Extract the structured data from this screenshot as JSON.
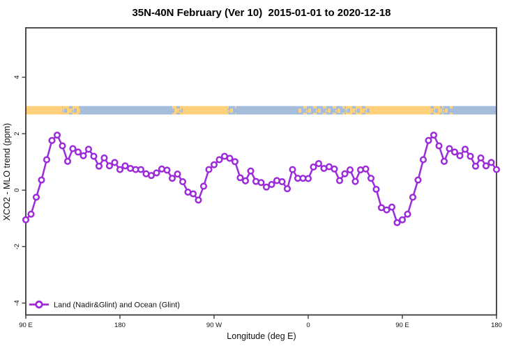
{
  "title": "35N-40N February (Ver 10)  2015-01-01 to 2020-12-18",
  "axes": {
    "x": {
      "label": "Longitude (deg E)",
      "ticks": [
        {
          "lon": 90,
          "label": "90 E"
        },
        {
          "lon": 180,
          "label": "180"
        },
        {
          "lon": 270,
          "label": "90 W"
        },
        {
          "lon": 360,
          "label": "0"
        },
        {
          "lon": 450,
          "label": "90 E"
        },
        {
          "lon": 540,
          "label": "180"
        }
      ]
    },
    "y": {
      "label": "XCO2 - MLO trend (ppm)",
      "ticks": [
        -4,
        -2,
        0,
        2,
        4
      ]
    }
  },
  "legend": {
    "label": "Land (Nadir&Glint) and Ocean (Glint)"
  },
  "colors": {
    "series": "#9C2BD9",
    "land": "#FDD17C",
    "ocean": "#A6BCDB",
    "axis": "#3a3a3a",
    "text": "#111111"
  },
  "surface_band": {
    "y_range_ppm": [
      2.68,
      2.98
    ],
    "segments": [
      {
        "lon1": 90,
        "lon2": 125,
        "type": "land"
      },
      {
        "lon1": 125,
        "lon2": 142,
        "type": "mix_land"
      },
      {
        "lon1": 142,
        "lon2": 230,
        "type": "ocean"
      },
      {
        "lon1": 230,
        "lon2": 240,
        "type": "mix_land"
      },
      {
        "lon1": 240,
        "lon2": 283,
        "type": "land"
      },
      {
        "lon1": 283,
        "lon2": 291,
        "type": "mix_ocean"
      },
      {
        "lon1": 291,
        "lon2": 350,
        "type": "ocean"
      },
      {
        "lon1": 350,
        "lon2": 395,
        "type": "mix_ocean"
      },
      {
        "lon1": 395,
        "lon2": 420,
        "type": "mix_land"
      },
      {
        "lon1": 420,
        "lon2": 477,
        "type": "land"
      },
      {
        "lon1": 477,
        "lon2": 488,
        "type": "mix_land"
      },
      {
        "lon1": 488,
        "lon2": 498,
        "type": "mix_ocean"
      },
      {
        "lon1": 498,
        "lon2": 540,
        "type": "ocean"
      }
    ]
  },
  "chart_data": {
    "type": "line",
    "title": "35N-40N February (Ver 10)  2015-01-01 to 2020-12-18",
    "xlabel": "Longitude (deg E)",
    "ylabel": "XCO2 - MLO trend (ppm)",
    "marker": "open-circle",
    "legend_position": "bottom-left",
    "grid": false,
    "xlim": [
      90,
      540
    ],
    "ylim": [
      -4.42,
      5.75
    ],
    "x": [
      90,
      95,
      100,
      105,
      110,
      115,
      120,
      125,
      130,
      135,
      140,
      145,
      150,
      155,
      160,
      165,
      170,
      175,
      180,
      185,
      190,
      195,
      200,
      205,
      210,
      215,
      220,
      225,
      230,
      235,
      240,
      245,
      250,
      255,
      260,
      265,
      270,
      275,
      280,
      285,
      290,
      295,
      300,
      305,
      310,
      315,
      320,
      325,
      330,
      335,
      340,
      345,
      350,
      355,
      360,
      365,
      370,
      375,
      380,
      385,
      390,
      395,
      400,
      405,
      410,
      415,
      420,
      425,
      430,
      435,
      440,
      445,
      450,
      455,
      460,
      465,
      470,
      475,
      480,
      485,
      490,
      495,
      500,
      505,
      510,
      515,
      520,
      525,
      530,
      535,
      540
    ],
    "series": [
      {
        "name": "Land (Nadir&Glint) and Ocean (Glint)",
        "values": [
          -1.05,
          -0.85,
          -0.25,
          0.36,
          1.08,
          1.76,
          1.95,
          1.57,
          1.02,
          1.47,
          1.35,
          1.22,
          1.45,
          1.2,
          0.85,
          1.14,
          0.86,
          0.98,
          0.73,
          0.86,
          0.77,
          0.73,
          0.73,
          0.58,
          0.52,
          0.61,
          0.75,
          0.71,
          0.42,
          0.57,
          0.3,
          -0.07,
          -0.13,
          -0.35,
          0.14,
          0.73,
          0.9,
          1.08,
          1.2,
          1.13,
          1.01,
          0.44,
          0.33,
          0.68,
          0.31,
          0.27,
          0.11,
          0.2,
          0.34,
          0.3,
          0.05,
          0.73,
          0.42,
          0.42,
          0.41,
          0.82,
          0.94,
          0.77,
          0.83,
          0.75,
          0.34,
          0.58,
          0.72,
          0.31,
          0.72,
          0.75,
          0.42,
          0.03,
          -0.62,
          -0.7,
          -0.6,
          -1.15,
          -1.05,
          -0.85,
          -0.25,
          0.36,
          1.08,
          1.76,
          1.95,
          1.57,
          1.02,
          1.47,
          1.35,
          1.22,
          1.45,
          1.2,
          0.85,
          1.14,
          0.86,
          0.98,
          0.73
        ]
      }
    ]
  }
}
